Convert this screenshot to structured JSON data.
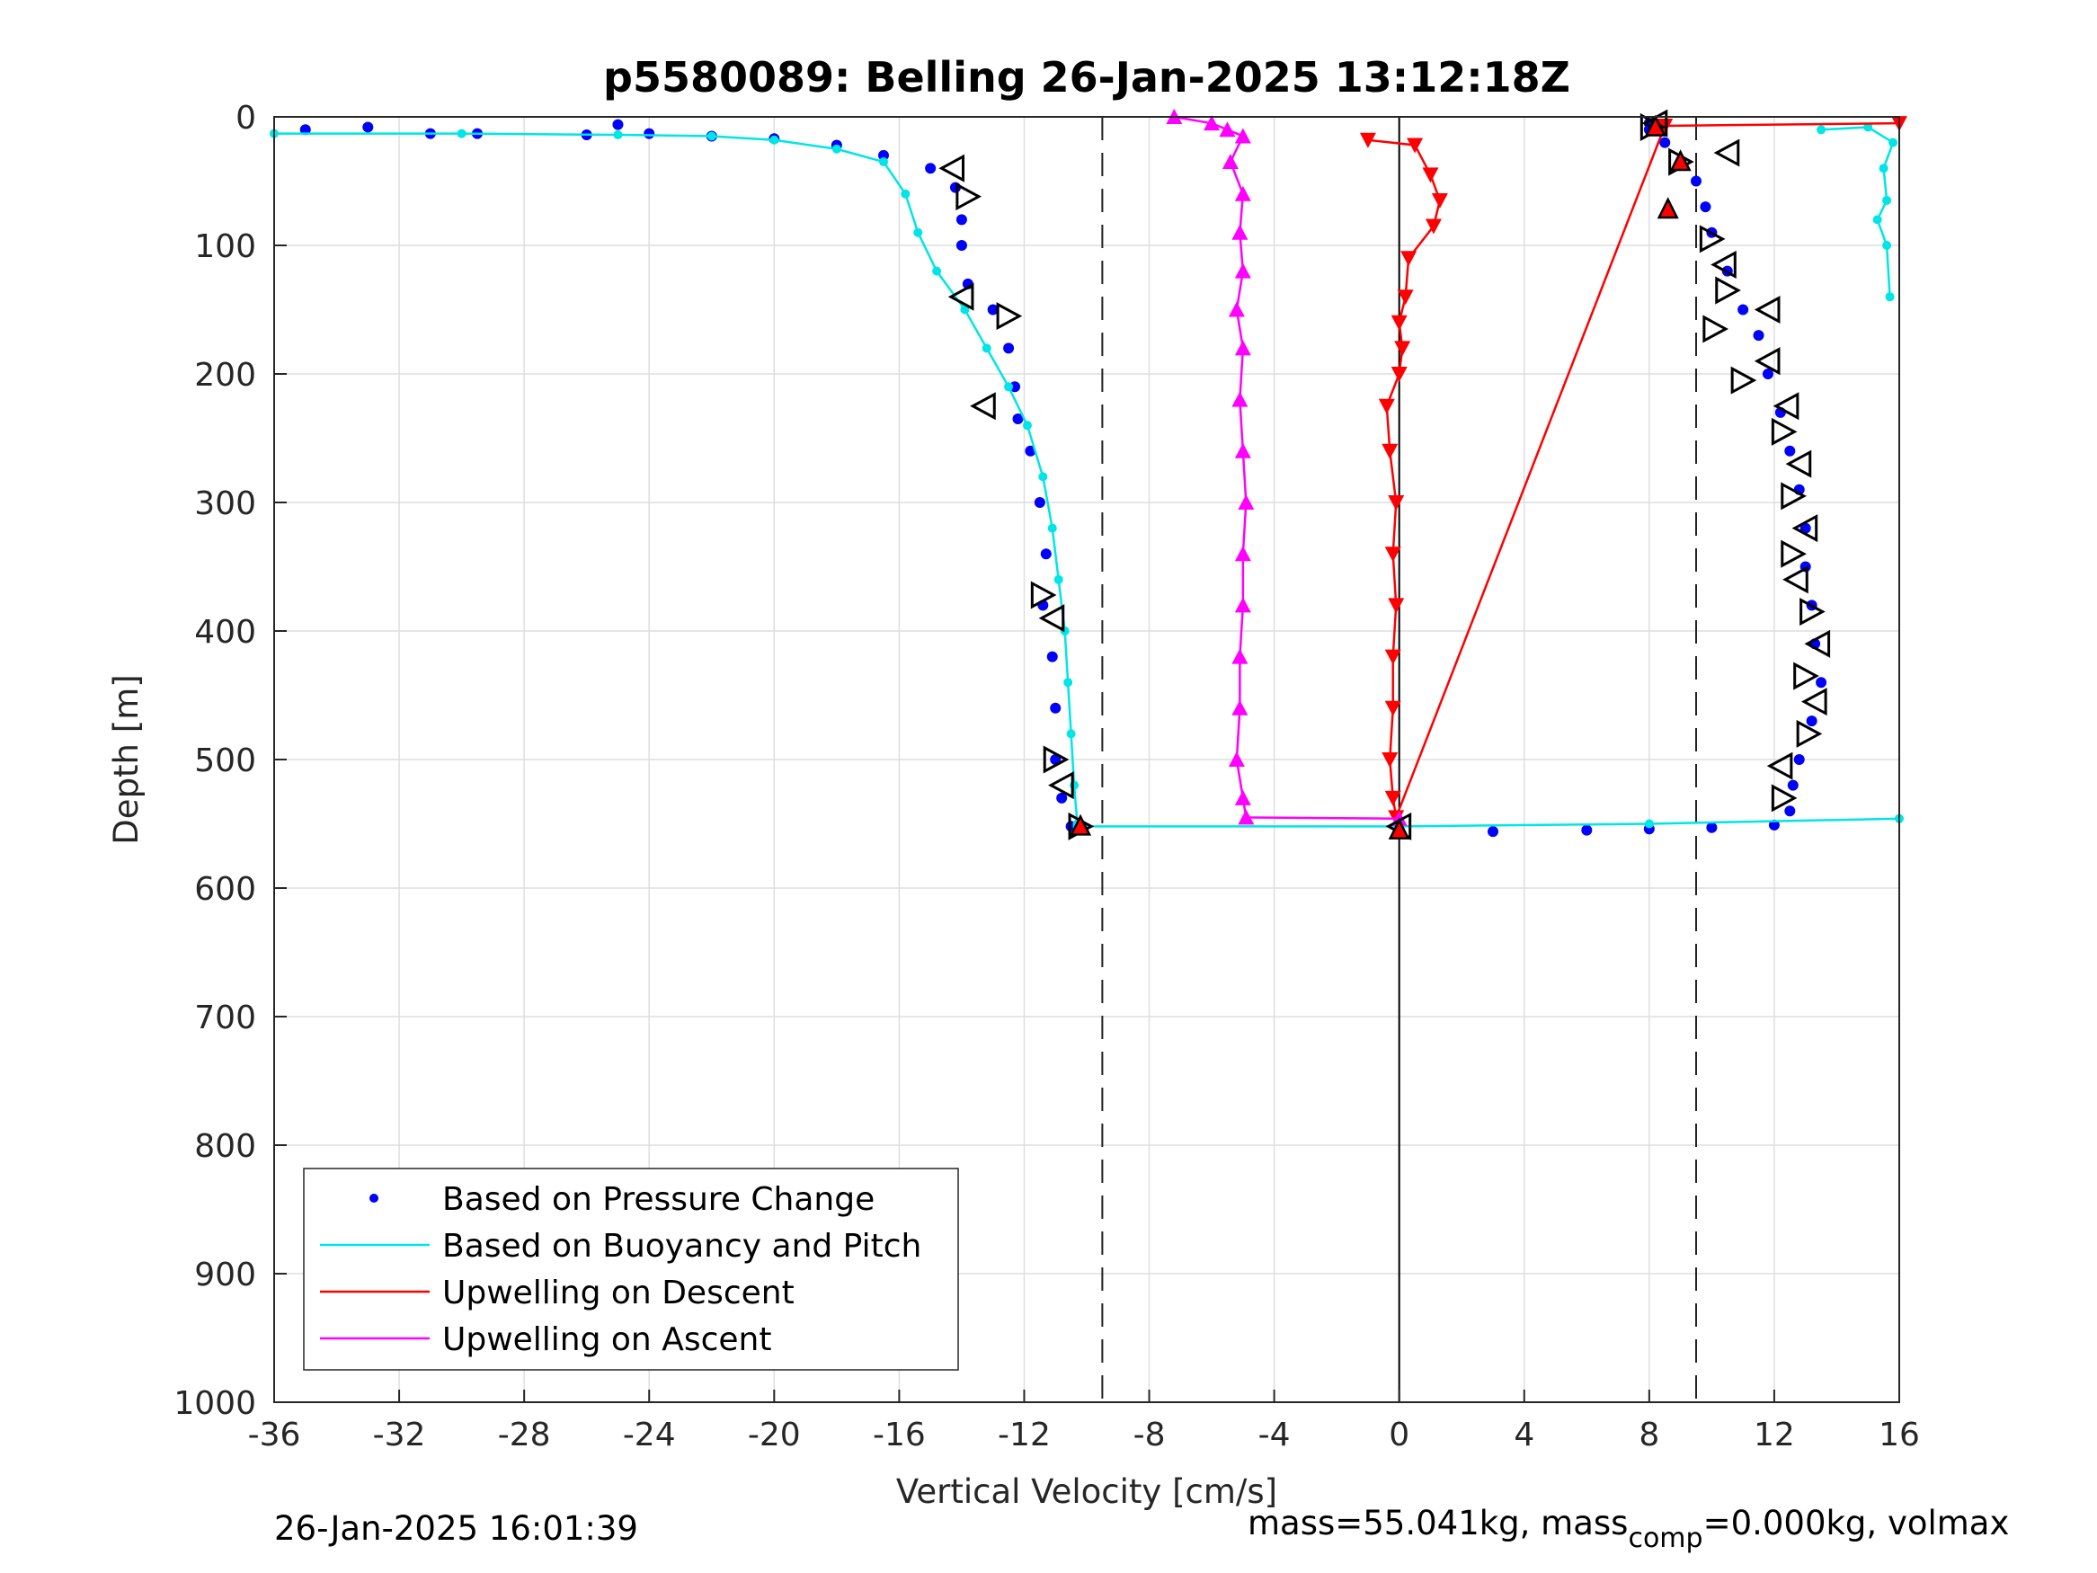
{
  "chart_data": {
    "type": "scatter",
    "title": "p5580089: Belling 26-Jan-2025 13:12:18Z",
    "xlabel": "Vertical Velocity [cm/s]",
    "ylabel": "Depth [m]",
    "xlim": [
      -36,
      16
    ],
    "ylim": [
      0,
      1000
    ],
    "y_reversed": true,
    "grid": true,
    "x_ticks": [
      "-36",
      "-32",
      "-28",
      "-24",
      "-20",
      "-16",
      "-12",
      "-8",
      "-4",
      "0",
      "4",
      "8",
      "12",
      "16"
    ],
    "y_ticks": [
      "0",
      "100",
      "200",
      "300",
      "400",
      "500",
      "600",
      "700",
      "800",
      "900",
      "1000"
    ],
    "reference_lines": {
      "dashed_x": [
        -9.5,
        9.5
      ],
      "solid_x": [
        0
      ]
    },
    "legend_position": "bottom-left",
    "legend": [
      {
        "label": "Based on Pressure Change",
        "color": "#0000ff",
        "marker": "dot"
      },
      {
        "label": "Based on Buoyancy and Pitch",
        "color": "#00e5e5",
        "marker": "line"
      },
      {
        "label": "Upwelling on Descent",
        "color": "#ff0000",
        "marker": "line"
      },
      {
        "label": "Upwelling on Ascent",
        "color": "#ff00ff",
        "marker": "line"
      }
    ],
    "series": [
      {
        "name": "Based on Pressure Change (descent)",
        "color": "#0000ff",
        "points": [
          [
            -35,
            10
          ],
          [
            -33,
            8
          ],
          [
            -31,
            13
          ],
          [
            -29.5,
            13
          ],
          [
            -26,
            14
          ],
          [
            -25,
            6
          ],
          [
            -24,
            13
          ],
          [
            -22,
            15
          ],
          [
            -20,
            17
          ],
          [
            -18,
            22
          ],
          [
            -16.5,
            30
          ],
          [
            -15,
            40
          ],
          [
            -14.2,
            55
          ],
          [
            -14,
            80
          ],
          [
            -14,
            100
          ],
          [
            -13.8,
            130
          ],
          [
            -13,
            150
          ],
          [
            -12.5,
            180
          ],
          [
            -12.3,
            210
          ],
          [
            -12.2,
            235
          ],
          [
            -11.8,
            260
          ],
          [
            -11.5,
            300
          ],
          [
            -11.3,
            340
          ],
          [
            -11.4,
            380
          ],
          [
            -11.1,
            420
          ],
          [
            -11,
            460
          ],
          [
            -11,
            500
          ],
          [
            -10.8,
            530
          ],
          [
            -10.5,
            552
          ]
        ]
      },
      {
        "name": "Based on Pressure Change (ascent)",
        "color": "#0000ff",
        "points": [
          [
            0,
            555
          ],
          [
            3,
            556
          ],
          [
            6,
            555
          ],
          [
            8,
            554
          ],
          [
            10,
            553
          ],
          [
            12,
            551
          ],
          [
            12.5,
            540
          ],
          [
            12.6,
            520
          ],
          [
            12.8,
            500
          ],
          [
            13.2,
            470
          ],
          [
            13.5,
            440
          ],
          [
            13.3,
            410
          ],
          [
            13.2,
            380
          ],
          [
            13,
            350
          ],
          [
            13,
            320
          ],
          [
            12.8,
            290
          ],
          [
            12.5,
            260
          ],
          [
            12.2,
            230
          ],
          [
            11.8,
            200
          ],
          [
            11.5,
            170
          ],
          [
            11,
            150
          ],
          [
            10.5,
            120
          ],
          [
            10,
            90
          ],
          [
            9.8,
            70
          ],
          [
            9.5,
            50
          ],
          [
            9,
            35
          ],
          [
            8.5,
            20
          ],
          [
            8,
            10
          ],
          [
            8,
            5
          ]
        ]
      },
      {
        "name": "Based on Buoyancy and Pitch (descent)",
        "color": "#00e5e5",
        "points": [
          [
            -36,
            13
          ],
          [
            -30,
            13
          ],
          [
            -25,
            14
          ],
          [
            -22,
            15
          ],
          [
            -20,
            18
          ],
          [
            -18,
            25
          ],
          [
            -16.5,
            35
          ],
          [
            -15.8,
            60
          ],
          [
            -15.4,
            90
          ],
          [
            -14.8,
            120
          ],
          [
            -13.9,
            150
          ],
          [
            -13.2,
            180
          ],
          [
            -12.5,
            210
          ],
          [
            -11.9,
            240
          ],
          [
            -11.4,
            280
          ],
          [
            -11.1,
            320
          ],
          [
            -10.9,
            360
          ],
          [
            -10.7,
            400
          ],
          [
            -10.6,
            440
          ],
          [
            -10.5,
            480
          ],
          [
            -10.4,
            520
          ],
          [
            -10.3,
            550
          ]
        ]
      },
      {
        "name": "Based on Buoyancy and Pitch (ascent)",
        "color": "#00e5e5",
        "points": [
          [
            -10.3,
            552
          ],
          [
            0,
            552
          ],
          [
            8,
            550
          ],
          [
            16,
            546
          ]
        ]
      },
      {
        "name": "Based on Buoyancy and Pitch (near surface)",
        "color": "#00e5e5",
        "points": [
          [
            13.5,
            10
          ],
          [
            15,
            8
          ],
          [
            15.8,
            20
          ],
          [
            15.5,
            40
          ],
          [
            15.6,
            65
          ],
          [
            15.3,
            80
          ],
          [
            15.6,
            100
          ],
          [
            15.7,
            140
          ]
        ]
      },
      {
        "name": "Upwelling on Descent",
        "color": "#ff0000",
        "points": [
          [
            -1,
            18
          ],
          [
            0.5,
            22
          ],
          [
            1,
            45
          ],
          [
            1.3,
            65
          ],
          [
            1.1,
            85
          ],
          [
            0.3,
            110
          ],
          [
            0.2,
            140
          ],
          [
            0,
            160
          ],
          [
            0.1,
            180
          ],
          [
            0,
            200
          ],
          [
            -0.4,
            225
          ],
          [
            -0.3,
            260
          ],
          [
            -0.1,
            300
          ],
          [
            -0.2,
            340
          ],
          [
            -0.1,
            380
          ],
          [
            -0.2,
            420
          ],
          [
            -0.2,
            460
          ],
          [
            -0.3,
            500
          ],
          [
            -0.2,
            530
          ],
          [
            -0.1,
            545
          ],
          [
            8.5,
            7
          ],
          [
            16,
            5
          ]
        ]
      },
      {
        "name": "Upwelling on Ascent",
        "color": "#ff00ff",
        "points": [
          [
            -7.2,
            0
          ],
          [
            -6,
            5
          ],
          [
            -5.5,
            10
          ],
          [
            -5,
            15
          ],
          [
            -5.4,
            35
          ],
          [
            -5,
            60
          ],
          [
            -5.1,
            90
          ],
          [
            -5,
            120
          ],
          [
            -5.2,
            150
          ],
          [
            -5,
            180
          ],
          [
            -5.1,
            220
          ],
          [
            -5,
            260
          ],
          [
            -4.9,
            300
          ],
          [
            -5,
            340
          ],
          [
            -5,
            380
          ],
          [
            -5.1,
            420
          ],
          [
            -5.1,
            460
          ],
          [
            -5.2,
            500
          ],
          [
            -5,
            530
          ],
          [
            -4.9,
            545
          ],
          [
            0,
            546
          ]
        ]
      }
    ],
    "markers": {
      "descent_triangles": [
        [
          -14.3,
          40
        ],
        [
          -13.8,
          62
        ],
        [
          -14,
          140
        ],
        [
          -12.5,
          155
        ],
        [
          -13.3,
          225
        ],
        [
          -11.4,
          372
        ],
        [
          -11.1,
          390
        ],
        [
          -11,
          500
        ],
        [
          -10.8,
          520
        ],
        [
          -10.2,
          552
        ]
      ],
      "ascent_triangles": [
        [
          8.1,
          8
        ],
        [
          8.2,
          5
        ],
        [
          9,
          35
        ],
        [
          10.5,
          28
        ],
        [
          10,
          95
        ],
        [
          10.4,
          115
        ],
        [
          10.5,
          135
        ],
        [
          11.8,
          150
        ],
        [
          10.1,
          165
        ],
        [
          11.8,
          190
        ],
        [
          11,
          205
        ],
        [
          12.4,
          225
        ],
        [
          12.3,
          245
        ],
        [
          12.8,
          270
        ],
        [
          12.6,
          295
        ],
        [
          13,
          320
        ],
        [
          12.6,
          340
        ],
        [
          12.7,
          360
        ],
        [
          13.2,
          385
        ],
        [
          13.4,
          410
        ],
        [
          13,
          435
        ],
        [
          13.3,
          455
        ],
        [
          13.1,
          480
        ],
        [
          12.2,
          505
        ],
        [
          12.3,
          530
        ],
        [
          0,
          552
        ]
      ],
      "red_filled": [
        [
          8.2,
          8
        ],
        [
          9,
          35
        ],
        [
          8.6,
          72
        ],
        [
          -10.2,
          552
        ],
        [
          0,
          555
        ]
      ]
    }
  },
  "footer": {
    "timestamp": "26-Jan-2025 16:01:39",
    "mass_text": "mass=55.041kg, mass",
    "mass_sub": "comp",
    "mass_tail": "=0.000kg, volmax"
  }
}
